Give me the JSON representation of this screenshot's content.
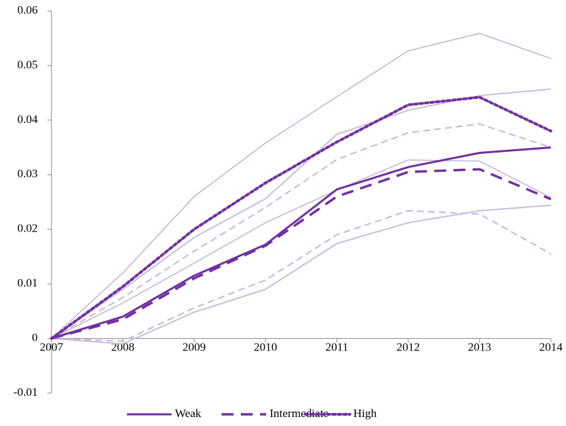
{
  "chart_data": {
    "type": "line",
    "x": [
      2007,
      2008,
      2009,
      2010,
      2011,
      2012,
      2013,
      2014
    ],
    "xlim": [
      2007,
      2014
    ],
    "xticks": [
      2007,
      2008,
      2009,
      2010,
      2011,
      2012,
      2013,
      2014
    ],
    "ylim": [
      -0.01,
      0.06
    ],
    "yticks": [
      -0.01,
      0,
      0.01,
      0.02,
      0.03,
      0.04,
      0.05,
      0.06
    ],
    "grid": false,
    "legend": "bottom",
    "series": [
      {
        "name": "Weak",
        "color": "#7030a0",
        "style": "solid",
        "width": 3,
        "values": [
          0,
          0.004,
          0.0115,
          0.0172,
          0.0273,
          0.0314,
          0.034,
          0.035
        ]
      },
      {
        "name": "Intermediate",
        "color": "#7030a0",
        "style": "dashed",
        "width": 3.5,
        "values": [
          0,
          0.0035,
          0.011,
          0.017,
          0.026,
          0.0305,
          0.031,
          0.0255
        ]
      },
      {
        "name": "High",
        "color": "#7030a0",
        "style": "dotted",
        "width": 4,
        "values": [
          0,
          0.0095,
          0.02,
          0.0285,
          0.036,
          0.0428,
          0.0442,
          0.038
        ]
      },
      {
        "color": "#c9bcdd",
        "style": "solid",
        "width": 2,
        "values": [
          0,
          0.009,
          0.0185,
          0.0256,
          0.0374,
          0.0418,
          0.0445,
          0.0457
        ]
      },
      {
        "color": "#c9bcdd",
        "style": "solid",
        "width": 2,
        "values": [
          0,
          -0.001,
          0.0048,
          0.009,
          0.0174,
          0.0212,
          0.0234,
          0.0244
        ]
      },
      {
        "color": "#c4b6dc",
        "style": "dashed",
        "width": 2,
        "values": [
          0,
          0.0075,
          0.016,
          0.024,
          0.0328,
          0.0377,
          0.0393,
          0.035
        ]
      },
      {
        "color": "#c4b6dc",
        "style": "dashed",
        "width": 2,
        "values": [
          0,
          -0.0005,
          0.0056,
          0.0107,
          0.019,
          0.0234,
          0.0228,
          0.0155
        ]
      },
      {
        "color": "#b9aad4",
        "style": "dotted",
        "width": 1.5,
        "values": [
          0,
          0.012,
          0.026,
          0.0358,
          0.0443,
          0.0527,
          0.0559,
          0.0513
        ]
      },
      {
        "color": "#b9aad4",
        "style": "dotted",
        "width": 1.5,
        "values": [
          0,
          0.0065,
          0.0138,
          0.0212,
          0.0272,
          0.0327,
          0.0325,
          0.0258
        ]
      }
    ]
  }
}
